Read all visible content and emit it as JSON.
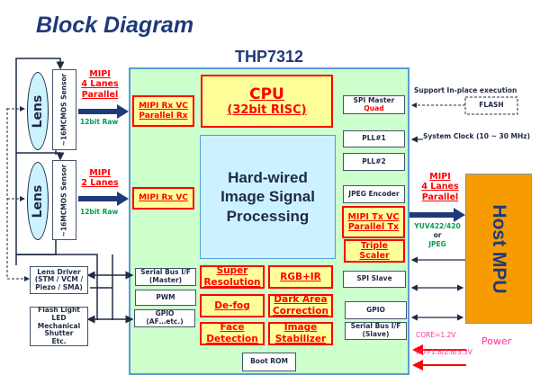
{
  "title": "Block Diagram",
  "chip_name": "THP7312",
  "colors": {
    "navy": "#1f3a7a",
    "red": "#ff0000",
    "chip_fill": "#ccffcc",
    "isp_fill": "#ccf2ff",
    "host_fill": "#f79c00",
    "power": "#ff3399",
    "green": "#00a050"
  },
  "sensors": [
    {
      "lens": "Lens",
      "sensor": "~16MCMOS Sensor",
      "link": [
        "MIPI",
        "4 Lanes",
        "Parallel"
      ],
      "format": "12bit Raw"
    },
    {
      "lens": "Lens",
      "sensor": "~16MCMOS Sensor",
      "link": [
        "MIPI",
        "2 Lanes"
      ],
      "format": "12bit Raw"
    }
  ],
  "external_left": {
    "lens_driver": [
      "Lens Driver",
      "(STM / VCM /",
      "Piezo / SMA)"
    ],
    "flash": [
      "Flash Light LED",
      "Mechanical",
      "Shutter",
      "Etc."
    ]
  },
  "rx": {
    "rx1": [
      "MIPI Rx VC",
      "Parallel Rx"
    ],
    "rx2": "MIPI Rx VC"
  },
  "cpu": {
    "title": "CPU",
    "sub": "(32bit RISC)"
  },
  "isp": [
    "Hard-wired",
    "Image Signal",
    "Processing"
  ],
  "right_blocks": {
    "spi_master": "SPI Master",
    "spi_master_sub": "Quad",
    "pll1": "PLL#1",
    "pll2": "PLL#2",
    "jpeg": "JPEG Encoder",
    "tx": [
      "MIPI Tx VC",
      "Parallel Tx"
    ],
    "scaler": "Triple Scaler",
    "spi_slave": "SPI Slave",
    "gpio": "GPIO",
    "serial_slave": [
      "Serial Bus I/F",
      "(Slave)"
    ]
  },
  "left_blocks": {
    "serial_master": [
      "Serial Bus I/F",
      "(Master)"
    ],
    "pwm": "PWM",
    "gpio": [
      "GPIO",
      "(AF…etc.)"
    ]
  },
  "functions": [
    [
      "Super",
      "Resolution"
    ],
    [
      "RGB+IR"
    ],
    [
      "De-fog"
    ],
    [
      "Dark Area",
      "Correction"
    ],
    [
      "Face",
      "Detection"
    ],
    [
      "Image",
      "Stabilizer"
    ]
  ],
  "boot_rom": "Boot ROM",
  "flash": {
    "label": "FLASH",
    "note": "Support In-place execution"
  },
  "clock": "System Clock (10 ~ 30 MHz)",
  "output": {
    "link": [
      "MIPI",
      "4 Lanes",
      "Parallel"
    ],
    "format": [
      "YUV422/420",
      "or",
      "JPEG"
    ]
  },
  "host": "Host MPU",
  "power": {
    "label": "Power",
    "core": "CORE=1.2V",
    "io": "I/O=1.8/2.8/3.3V"
  }
}
